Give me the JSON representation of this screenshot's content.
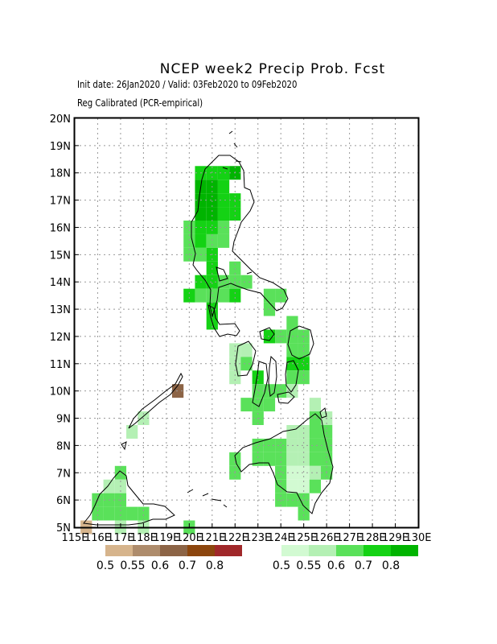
{
  "header": {
    "title": "NCEP week2 Precip Prob. Fcst",
    "subtitle_dates": "Init date: 26Jan2020 / Valid: 03Feb2020 to 09Feb2020",
    "subtitle_method": "Reg Calibrated (PCR-empirical)"
  },
  "axes": {
    "lat_labels": [
      "5N",
      "6N",
      "7N",
      "8N",
      "9N",
      "10N",
      "11N",
      "12N",
      "13N",
      "14N",
      "15N",
      "16N",
      "17N",
      "18N",
      "19N",
      "20N"
    ],
    "lon_labels": [
      "115E",
      "116E",
      "117E",
      "118E",
      "119E",
      "120E",
      "121E",
      "122E",
      "123E",
      "124E",
      "125E",
      "126E",
      "127E",
      "128E",
      "129E",
      "130E"
    ],
    "lat_range": [
      5,
      20
    ],
    "lon_range": [
      115,
      130
    ],
    "grid": true
  },
  "legend": {
    "dry": {
      "labels": [
        "0.5",
        "0.55",
        "0.6",
        "0.7",
        "0.8"
      ],
      "colors": [
        "#d6b48c",
        "#ae8c6c",
        "#8c6446",
        "#8c460e",
        "#a0282a"
      ]
    },
    "wet": {
      "labels": [
        "0.5",
        "0.55",
        "0.6",
        "0.7",
        "0.8"
      ],
      "colors": [
        "#d2fad2",
        "#b4f0b4",
        "#5ae15a",
        "#14d214",
        "#00b400"
      ]
    }
  },
  "chart_data": {
    "type": "heatmap",
    "title": "NCEP week2 Precip Prob. Fcst",
    "cell_size_deg": 0.5,
    "note_levels": "level 1-5 wet (0.5,0.55,0.6,0.7,0.8); level -1..-5 dry",
    "cells": [
      {
        "lon": 120.5,
        "lat": 18.0,
        "level": 4
      },
      {
        "lon": 121.0,
        "lat": 18.0,
        "level": 4
      },
      {
        "lon": 121.5,
        "lat": 18.0,
        "level": 4
      },
      {
        "lon": 122.0,
        "lat": 18.0,
        "level": 5
      },
      {
        "lon": 120.5,
        "lat": 17.5,
        "level": 5
      },
      {
        "lon": 121.0,
        "lat": 17.5,
        "level": 5
      },
      {
        "lon": 121.5,
        "lat": 17.5,
        "level": 4
      },
      {
        "lon": 120.5,
        "lat": 17.0,
        "level": 5
      },
      {
        "lon": 121.0,
        "lat": 17.0,
        "level": 5
      },
      {
        "lon": 121.5,
        "lat": 17.0,
        "level": 4
      },
      {
        "lon": 122.0,
        "lat": 17.0,
        "level": 4
      },
      {
        "lon": 120.5,
        "lat": 16.5,
        "level": 5
      },
      {
        "lon": 121.0,
        "lat": 16.5,
        "level": 5
      },
      {
        "lon": 121.5,
        "lat": 16.5,
        "level": 4
      },
      {
        "lon": 122.0,
        "lat": 16.5,
        "level": 4
      },
      {
        "lon": 120.0,
        "lat": 16.0,
        "level": 3
      },
      {
        "lon": 120.5,
        "lat": 16.0,
        "level": 4
      },
      {
        "lon": 121.0,
        "lat": 16.0,
        "level": 4
      },
      {
        "lon": 121.5,
        "lat": 16.0,
        "level": 3
      },
      {
        "lon": 120.0,
        "lat": 15.5,
        "level": 3
      },
      {
        "lon": 120.5,
        "lat": 15.5,
        "level": 4
      },
      {
        "lon": 121.0,
        "lat": 15.5,
        "level": 3
      },
      {
        "lon": 121.5,
        "lat": 15.5,
        "level": 3
      },
      {
        "lon": 120.0,
        "lat": 15.0,
        "level": 3
      },
      {
        "lon": 120.5,
        "lat": 15.0,
        "level": 3
      },
      {
        "lon": 121.0,
        "lat": 15.0,
        "level": 4
      },
      {
        "lon": 121.0,
        "lat": 14.5,
        "level": 4
      },
      {
        "lon": 122.0,
        "lat": 14.5,
        "level": 3
      },
      {
        "lon": 120.5,
        "lat": 14.0,
        "level": 4
      },
      {
        "lon": 121.0,
        "lat": 14.0,
        "level": 4
      },
      {
        "lon": 121.5,
        "lat": 14.0,
        "level": 3
      },
      {
        "lon": 122.0,
        "lat": 14.0,
        "level": 3
      },
      {
        "lon": 122.5,
        "lat": 14.0,
        "level": 3
      },
      {
        "lon": 120.0,
        "lat": 13.5,
        "level": 4
      },
      {
        "lon": 120.5,
        "lat": 13.5,
        "level": 3
      },
      {
        "lon": 121.0,
        "lat": 13.5,
        "level": 3
      },
      {
        "lon": 121.5,
        "lat": 13.5,
        "level": 3
      },
      {
        "lon": 122.0,
        "lat": 13.5,
        "level": 4
      },
      {
        "lon": 123.5,
        "lat": 13.5,
        "level": 3
      },
      {
        "lon": 124.0,
        "lat": 13.5,
        "level": 3
      },
      {
        "lon": 121.0,
        "lat": 13.0,
        "level": 4
      },
      {
        "lon": 123.5,
        "lat": 13.0,
        "level": 3
      },
      {
        "lon": 121.0,
        "lat": 12.5,
        "level": 4
      },
      {
        "lon": 124.5,
        "lat": 12.5,
        "level": 3
      },
      {
        "lon": 123.5,
        "lat": 12.0,
        "level": 4
      },
      {
        "lon": 124.0,
        "lat": 12.0,
        "level": 3
      },
      {
        "lon": 124.5,
        "lat": 12.0,
        "level": 3
      },
      {
        "lon": 125.0,
        "lat": 12.0,
        "level": 3
      },
      {
        "lon": 122.0,
        "lat": 11.5,
        "level": 2
      },
      {
        "lon": 122.5,
        "lat": 11.5,
        "level": 2
      },
      {
        "lon": 124.5,
        "lat": 11.5,
        "level": 3
      },
      {
        "lon": 125.0,
        "lat": 11.5,
        "level": 3
      },
      {
        "lon": 122.0,
        "lat": 11.0,
        "level": 2
      },
      {
        "lon": 122.5,
        "lat": 11.0,
        "level": 3
      },
      {
        "lon": 124.5,
        "lat": 11.0,
        "level": 4
      },
      {
        "lon": 125.0,
        "lat": 11.0,
        "level": 4
      },
      {
        "lon": 122.0,
        "lat": 10.5,
        "level": 2
      },
      {
        "lon": 123.0,
        "lat": 10.5,
        "level": 4
      },
      {
        "lon": 124.5,
        "lat": 10.5,
        "level": 3
      },
      {
        "lon": 125.0,
        "lat": 10.5,
        "level": 3
      },
      {
        "lon": 123.0,
        "lat": 10.0,
        "level": 3
      },
      {
        "lon": 123.5,
        "lat": 10.0,
        "level": 3
      },
      {
        "lon": 124.0,
        "lat": 10.0,
        "level": 3
      },
      {
        "lon": 124.5,
        "lat": 10.0,
        "level": 2
      },
      {
        "lon": 122.5,
        "lat": 9.5,
        "level": 3
      },
      {
        "lon": 123.0,
        "lat": 9.5,
        "level": 3
      },
      {
        "lon": 123.5,
        "lat": 9.5,
        "level": 3
      },
      {
        "lon": 125.5,
        "lat": 9.5,
        "level": 2
      },
      {
        "lon": 123.0,
        "lat": 9.0,
        "level": 3
      },
      {
        "lon": 125.5,
        "lat": 9.0,
        "level": 3
      },
      {
        "lon": 126.0,
        "lat": 9.0,
        "level": 2
      },
      {
        "lon": 124.5,
        "lat": 8.5,
        "level": 2
      },
      {
        "lon": 125.0,
        "lat": 8.5,
        "level": 2
      },
      {
        "lon": 125.5,
        "lat": 8.5,
        "level": 3
      },
      {
        "lon": 126.0,
        "lat": 8.5,
        "level": 3
      },
      {
        "lon": 123.0,
        "lat": 8.0,
        "level": 3
      },
      {
        "lon": 123.5,
        "lat": 8.0,
        "level": 3
      },
      {
        "lon": 124.0,
        "lat": 8.0,
        "level": 3
      },
      {
        "lon": 124.5,
        "lat": 8.0,
        "level": 2
      },
      {
        "lon": 125.0,
        "lat": 8.0,
        "level": 2
      },
      {
        "lon": 125.5,
        "lat": 8.0,
        "level": 3
      },
      {
        "lon": 126.0,
        "lat": 8.0,
        "level": 3
      },
      {
        "lon": 122.0,
        "lat": 7.5,
        "level": 3
      },
      {
        "lon": 123.0,
        "lat": 7.5,
        "level": 3
      },
      {
        "lon": 123.5,
        "lat": 7.5,
        "level": 3
      },
      {
        "lon": 124.0,
        "lat": 7.5,
        "level": 3
      },
      {
        "lon": 124.5,
        "lat": 7.5,
        "level": 2
      },
      {
        "lon": 125.0,
        "lat": 7.5,
        "level": 2
      },
      {
        "lon": 125.5,
        "lat": 7.5,
        "level": 3
      },
      {
        "lon": 126.0,
        "lat": 7.5,
        "level": 3
      },
      {
        "lon": 122.0,
        "lat": 7.0,
        "level": 3
      },
      {
        "lon": 124.0,
        "lat": 7.0,
        "level": 3
      },
      {
        "lon": 124.5,
        "lat": 7.0,
        "level": 1
      },
      {
        "lon": 125.0,
        "lat": 7.0,
        "level": 1
      },
      {
        "lon": 125.5,
        "lat": 7.0,
        "level": 2
      },
      {
        "lon": 126.0,
        "lat": 7.0,
        "level": 3
      },
      {
        "lon": 124.0,
        "lat": 6.5,
        "level": 3
      },
      {
        "lon": 124.5,
        "lat": 6.5,
        "level": 1
      },
      {
        "lon": 125.0,
        "lat": 6.5,
        "level": 1
      },
      {
        "lon": 125.5,
        "lat": 6.5,
        "level": 3
      },
      {
        "lon": 124.0,
        "lat": 6.0,
        "level": 3
      },
      {
        "lon": 124.5,
        "lat": 6.0,
        "level": 3
      },
      {
        "lon": 125.0,
        "lat": 6.0,
        "level": 3
      },
      {
        "lon": 125.0,
        "lat": 5.5,
        "level": 3
      },
      {
        "lon": 117.0,
        "lat": 7.0,
        "level": 3
      },
      {
        "lon": 116.5,
        "lat": 6.5,
        "level": 2
      },
      {
        "lon": 117.0,
        "lat": 6.5,
        "level": 2
      },
      {
        "lon": 116.0,
        "lat": 6.0,
        "level": 3
      },
      {
        "lon": 116.5,
        "lat": 6.0,
        "level": 3
      },
      {
        "lon": 117.0,
        "lat": 6.0,
        "level": 3
      },
      {
        "lon": 116.0,
        "lat": 5.5,
        "level": 3
      },
      {
        "lon": 116.5,
        "lat": 5.5,
        "level": 3
      },
      {
        "lon": 117.0,
        "lat": 5.5,
        "level": 3
      },
      {
        "lon": 117.5,
        "lat": 5.5,
        "level": 3
      },
      {
        "lon": 118.0,
        "lat": 5.5,
        "level": 3
      },
      {
        "lon": 117.0,
        "lat": 5.0,
        "level": 2
      },
      {
        "lon": 118.0,
        "lat": 5.0,
        "level": 2
      },
      {
        "lon": 120.0,
        "lat": 5.0,
        "level": 3
      },
      {
        "lon": 115.5,
        "lat": 5.0,
        "level": -1
      },
      {
        "lon": 117.5,
        "lat": 8.5,
        "level": 2
      },
      {
        "lon": 118.0,
        "lat": 9.0,
        "level": 2
      },
      {
        "lon": 119.5,
        "lat": 10.0,
        "level": -3
      }
    ]
  }
}
